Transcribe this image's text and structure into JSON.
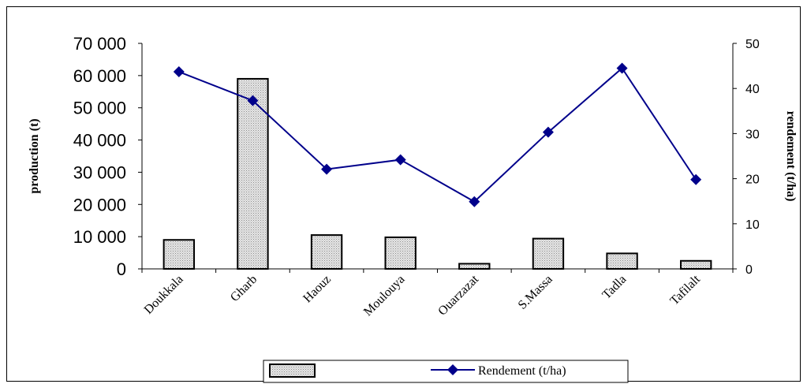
{
  "chart_data": {
    "type": "bar+line",
    "categories": [
      "Doukkala",
      "Gharb",
      "Haouz",
      "Moulouya",
      "Ouarzazat",
      "S.Massa",
      "Tadla",
      "Tafilalt"
    ],
    "series": [
      {
        "name": "",
        "type": "bar",
        "axis": "left",
        "values": [
          9000,
          59000,
          10500,
          9800,
          1600,
          9400,
          4800,
          2500
        ]
      },
      {
        "name": "Rendement (t/ha)",
        "type": "line",
        "axis": "right",
        "color": "#00008B",
        "values": [
          43.7,
          37.3,
          22.1,
          24.2,
          14.9,
          30.3,
          44.5,
          19.8
        ]
      }
    ],
    "ylabel_left": "production (t)",
    "ylabel_right": "rendement (t/ha)",
    "ylim_left": [
      0,
      70000
    ],
    "ylim_right": [
      0,
      50
    ],
    "yticks_left": [
      "0",
      "10 000",
      "20 000",
      "30 000",
      "40 000",
      "50 000",
      "60 000",
      "70 000"
    ],
    "yticks_right": [
      "0",
      "10",
      "20",
      "30",
      "40",
      "50"
    ],
    "grid": false,
    "legend_position": "bottom"
  }
}
